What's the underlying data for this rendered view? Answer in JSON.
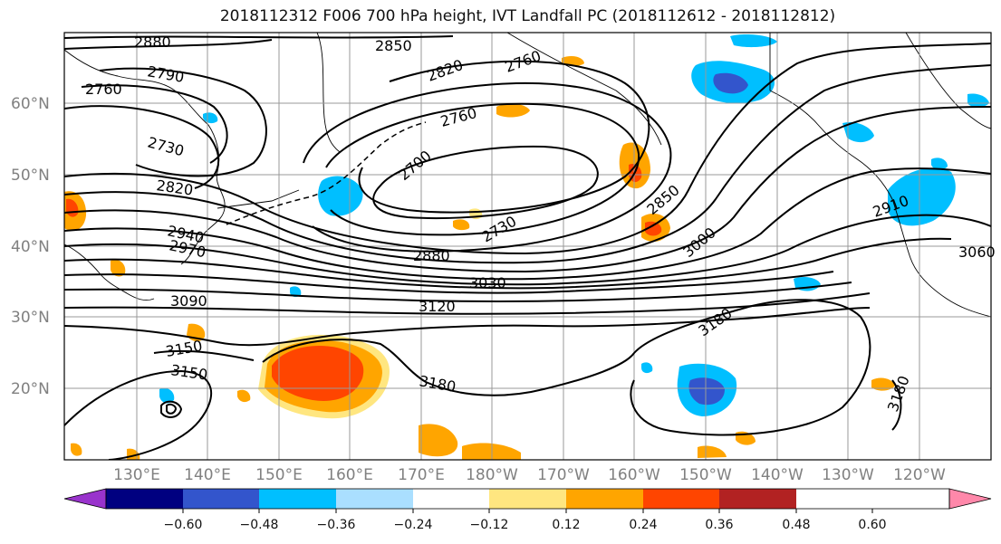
{
  "title": "2018112312 F006 700 hPa height, IVT Landfall PC (2018112612 - 2018112812)",
  "lat_labels": [
    "60°N",
    "50°N",
    "40°N",
    "30°N",
    "20°N"
  ],
  "lon_labels": [
    "130°E",
    "140°E",
    "150°E",
    "160°E",
    "170°E",
    "180°W",
    "170°W",
    "160°W",
    "150°W",
    "140°W",
    "130°W",
    "120°W"
  ],
  "colorbar": {
    "tick_labels": [
      "−0.60",
      "−0.48",
      "−0.36",
      "−0.24",
      "−0.12",
      "0.12",
      "0.24",
      "0.36",
      "0.48",
      "0.60"
    ],
    "colors": [
      "#9933cc",
      "#000080",
      "#3355cc",
      "#00bfff",
      "#aadfff",
      "#ffffff",
      "#ffe680",
      "#ffa500",
      "#ff4500",
      "#b22222",
      "#ff88aa"
    ]
  },
  "contour_labels": [
    "2880",
    "2850",
    "2790",
    "2820",
    "2760",
    "2760",
    "2760",
    "2730",
    "2700",
    "2820",
    "2940",
    "2970",
    "2850",
    "2730",
    "2910",
    "3000",
    "2880",
    "3030",
    "3060",
    "3090",
    "3120",
    "3180",
    "3150",
    "3150",
    "3180",
    "3180"
  ],
  "colors": {
    "contour": "#000000",
    "grid": "#999999",
    "coast": "#000000"
  }
}
